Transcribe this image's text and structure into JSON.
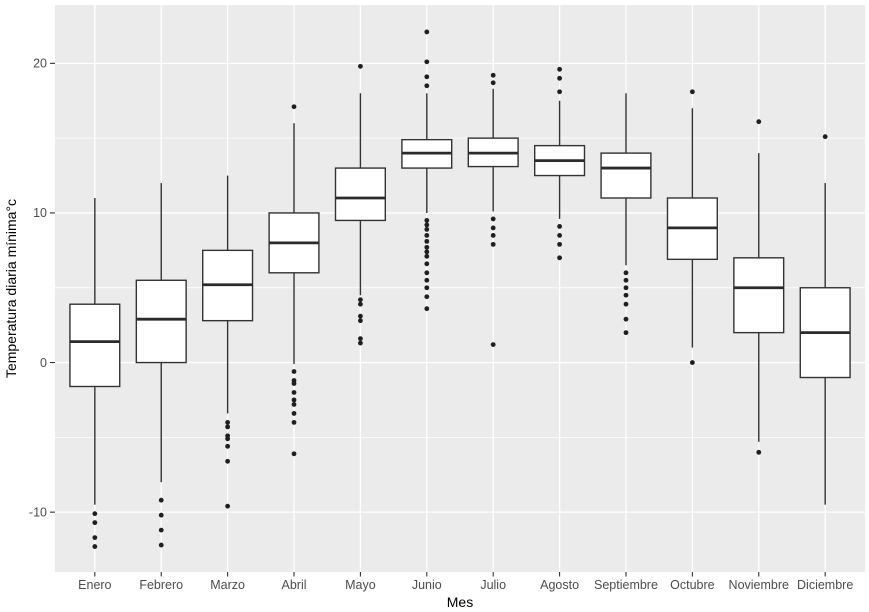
{
  "chart_data": {
    "type": "boxplot",
    "title": "",
    "xlabel": "Mes",
    "ylabel": "Temperatura diaria mínima°c",
    "legend": "none",
    "grid": {
      "major_y": true,
      "minor_y": true,
      "major_x_at_categories": true,
      "grid_color": "#FFFFFF"
    },
    "ylim": [
      -14,
      23.9
    ],
    "y_major_ticks": [
      -10,
      0,
      10,
      20
    ],
    "y_minor_ticks": [
      -5,
      5,
      15
    ],
    "categories": [
      "Enero",
      "Febrero",
      "Marzo",
      "Abril",
      "Mayo",
      "Junio",
      "Julio",
      "Agosto",
      "Septiembre",
      "Octubre",
      "Noviembre",
      "Diciembre"
    ],
    "series": [
      {
        "month": "Enero",
        "whisker_low": -9.5,
        "q1": -1.6,
        "median": 1.4,
        "q3": 3.9,
        "whisker_high": 11.0,
        "outliers": [
          -10.1,
          -10.7,
          -11.7,
          -12.3
        ]
      },
      {
        "month": "Febrero",
        "whisker_low": -8.0,
        "q1": 0.0,
        "median": 2.9,
        "q3": 5.5,
        "whisker_high": 12.0,
        "outliers": [
          -9.2,
          -10.2,
          -11.2,
          -12.2
        ]
      },
      {
        "month": "Marzo",
        "whisker_low": -3.4,
        "q1": 2.8,
        "median": 5.2,
        "q3": 7.5,
        "whisker_high": 12.5,
        "outliers": [
          -4.0,
          -4.3,
          -4.9,
          -5.1,
          -5.6,
          -6.6,
          -9.6
        ]
      },
      {
        "month": "Abril",
        "whisker_low": -0.1,
        "q1": 6.0,
        "median": 8.0,
        "q3": 10.0,
        "whisker_high": 16.0,
        "outliers": [
          17.1,
          -0.6,
          -1.2,
          -1.4,
          -2.0,
          -2.5,
          -2.8,
          -3.4,
          -4.0,
          -6.1
        ]
      },
      {
        "month": "Mayo",
        "whisker_low": 4.5,
        "q1": 9.5,
        "median": 11.0,
        "q3": 13.0,
        "whisker_high": 18.0,
        "outliers": [
          19.8,
          4.2,
          3.9,
          3.1,
          2.8,
          1.6,
          1.3
        ]
      },
      {
        "month": "Junio",
        "whisker_low": 10.0,
        "q1": 13.0,
        "median": 14.0,
        "q3": 14.9,
        "whisker_high": 18.0,
        "outliers": [
          22.1,
          20.1,
          19.1,
          18.5,
          9.5,
          9.2,
          8.9,
          8.5,
          8.1,
          7.7,
          7.4,
          7.1,
          6.6,
          6.0,
          5.5,
          5.0,
          4.4,
          3.6
        ]
      },
      {
        "month": "Julio",
        "whisker_low": 10.1,
        "q1": 13.1,
        "median": 14.0,
        "q3": 15.0,
        "whisker_high": 18.3,
        "outliers": [
          19.2,
          18.7,
          9.6,
          9.0,
          8.5,
          7.9,
          1.2
        ]
      },
      {
        "month": "Agosto",
        "whisker_low": 9.6,
        "q1": 12.5,
        "median": 13.5,
        "q3": 14.5,
        "whisker_high": 17.5,
        "outliers": [
          19.6,
          19.0,
          18.1,
          9.1,
          8.5,
          7.9,
          7.0
        ]
      },
      {
        "month": "Septiembre",
        "whisker_low": 6.5,
        "q1": 11.0,
        "median": 13.0,
        "q3": 14.0,
        "whisker_high": 18.0,
        "outliers": [
          6.0,
          5.5,
          5.0,
          4.5,
          3.9,
          2.9,
          2.0
        ]
      },
      {
        "month": "Octubre",
        "whisker_low": 1.0,
        "q1": 6.9,
        "median": 9.0,
        "q3": 11.0,
        "whisker_high": 17.0,
        "outliers": [
          18.1,
          0.0
        ]
      },
      {
        "month": "Noviembre",
        "whisker_low": -5.3,
        "q1": 2.0,
        "median": 5.0,
        "q3": 7.0,
        "whisker_high": 14.0,
        "outliers": [
          16.1,
          -6.0
        ]
      },
      {
        "month": "Diciembre",
        "whisker_low": -9.5,
        "q1": -1.0,
        "median": 2.0,
        "q3": 5.0,
        "whisker_high": 12.0,
        "outliers": [
          15.1
        ]
      }
    ],
    "colors": {
      "figure_background": "#FFFFFF",
      "panel_background": "#EBEBEB",
      "grid": "#FFFFFF",
      "box_fill": "#FFFFFF",
      "box_stroke": "#333333",
      "median_stroke": "#2B2B2B",
      "outlier": "#1F1F1F",
      "tick_mark": "#333333",
      "tick_label": "#4D4D4D",
      "axis_title": "#000000"
    }
  }
}
